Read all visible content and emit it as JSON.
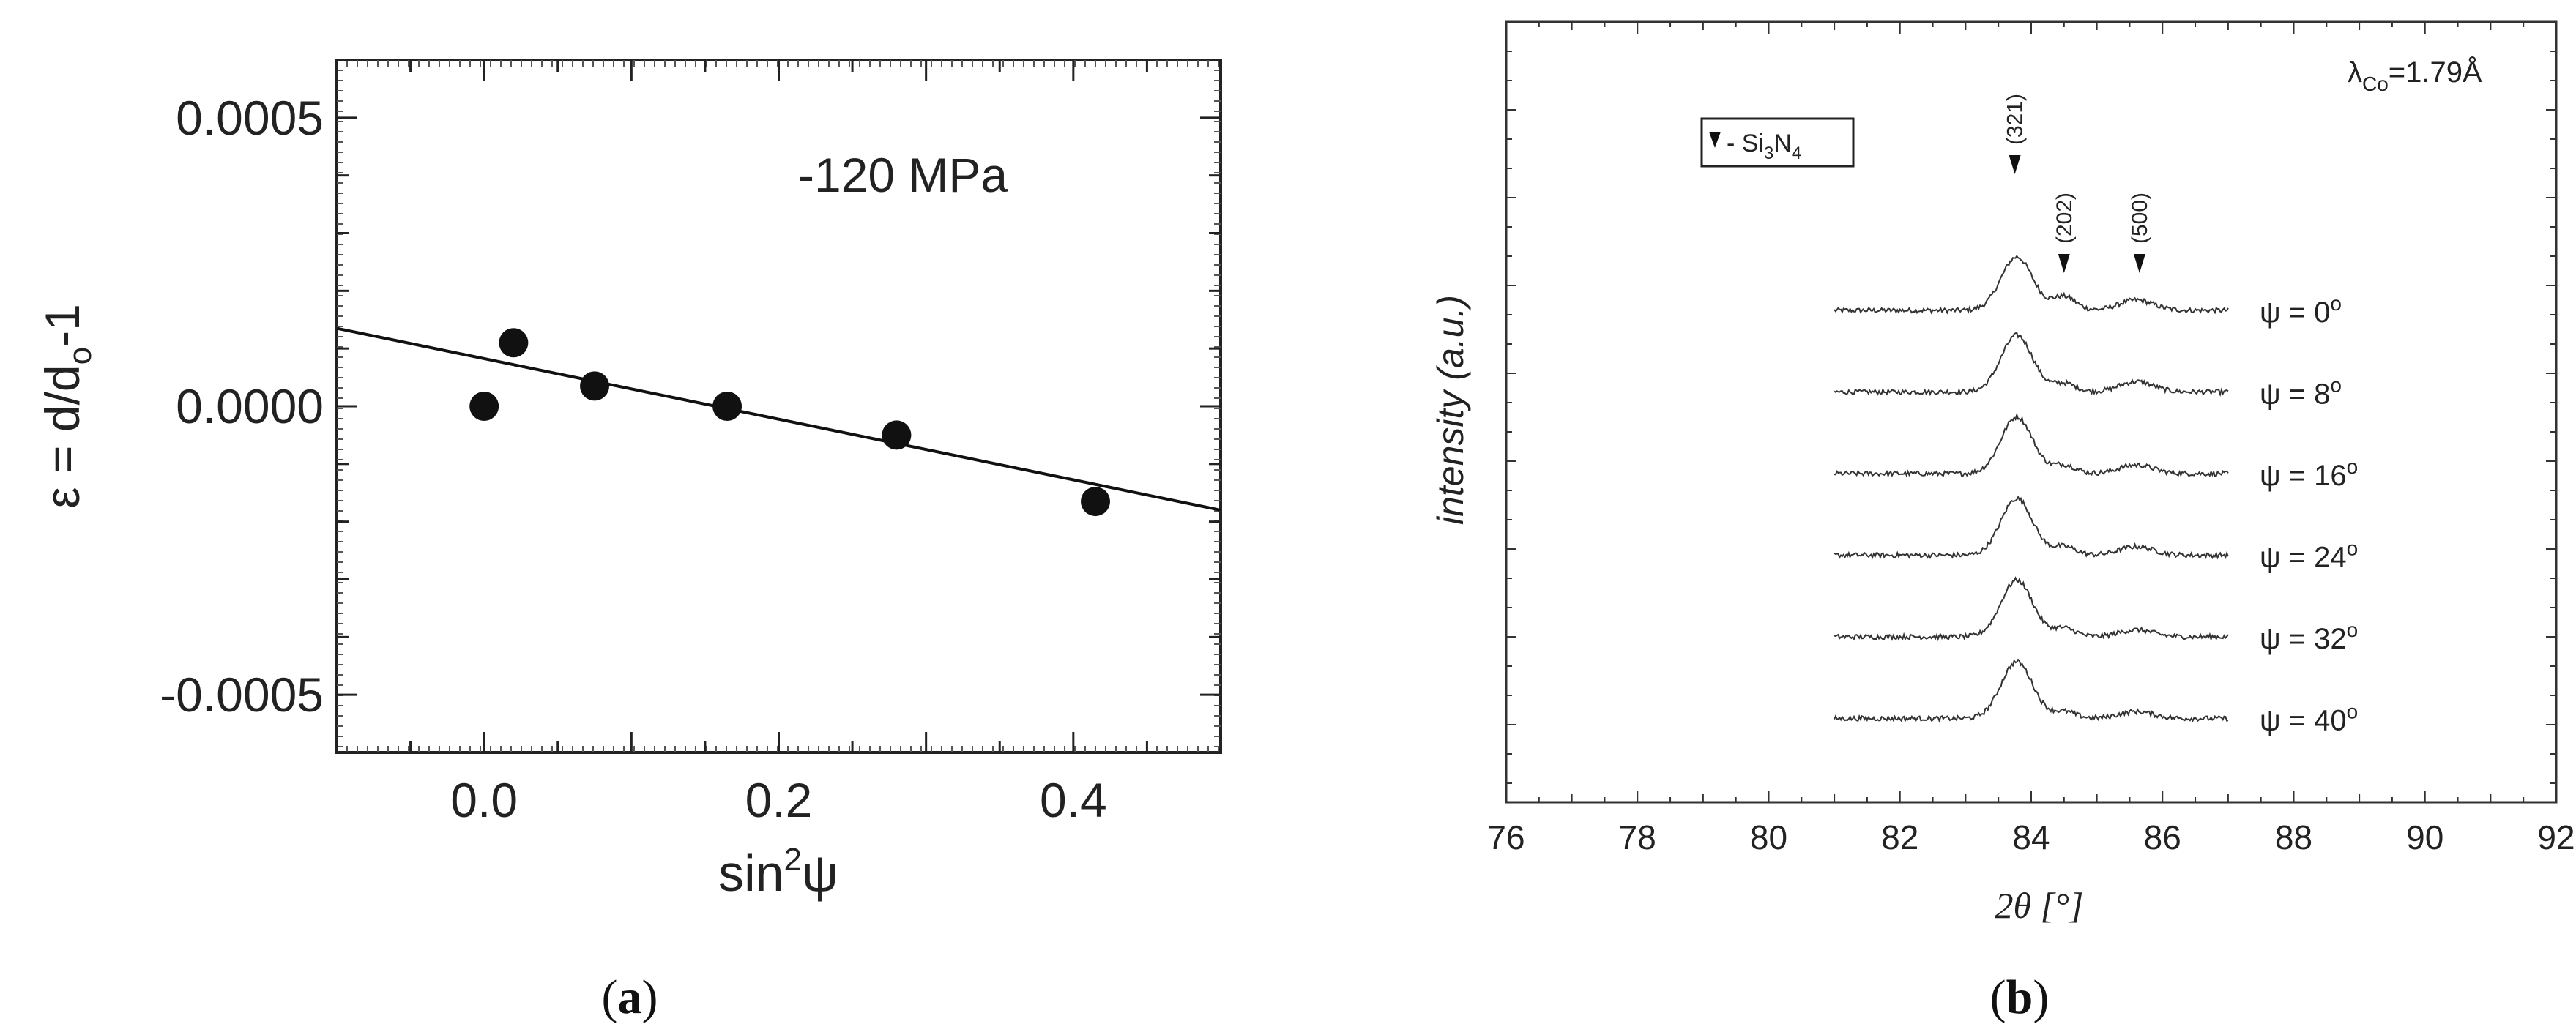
{
  "panel_a": {
    "caption_open": "(",
    "caption_letter": "a",
    "caption_close": ")",
    "chart_data": {
      "type": "scatter",
      "title": "",
      "annotation": "-120 MPa",
      "xlabel_base": "sin",
      "xlabel_sup": "2",
      "xlabel_tail": "ψ",
      "ylabel_prefix": "ε = d/d",
      "ylabel_sub": "o",
      "ylabel_suffix": "-1",
      "xlim": [
        -0.1,
        0.5
      ],
      "ylim": [
        -0.0006,
        0.0006
      ],
      "xticks": [
        0.0,
        0.2,
        0.4
      ],
      "xtick_labels": [
        "0.0",
        "0.2",
        "0.4"
      ],
      "yticks": [
        0.0005,
        0.0,
        -0.0005
      ],
      "ytick_labels": [
        "0.0005",
        "0.0000",
        "-0.0005"
      ],
      "points": [
        {
          "x": 0.0,
          "y": 0.0
        },
        {
          "x": 0.02,
          "y": 0.00011
        },
        {
          "x": 0.075,
          "y": 3.5e-05
        },
        {
          "x": 0.165,
          "y": 0.0
        },
        {
          "x": 0.28,
          "y": -5e-05
        },
        {
          "x": 0.415,
          "y": -0.000165
        }
      ],
      "fit_line": {
        "x": [
          -0.1,
          0.5
        ],
        "y": [
          0.000135,
          -0.00018
        ]
      }
    }
  },
  "panel_b": {
    "caption_open": "(",
    "caption_letter": "b",
    "caption_close": ")",
    "chart_data": {
      "type": "line",
      "title": "",
      "xlabel": "2θ [°]",
      "ylabel": "intensity (a.u.)",
      "xlim": [
        76,
        92
      ],
      "xticks": [
        76,
        78,
        80,
        82,
        84,
        86,
        88,
        90,
        92
      ],
      "xtick_labels": [
        "76",
        "78",
        "80",
        "82",
        "84",
        "86",
        "88",
        "90",
        "92"
      ],
      "wavelength_label": "λ",
      "wavelength_sub": "Co",
      "wavelength_value": "=1.79Å",
      "legend_text": "- Si",
      "legend_sub1": "3",
      "legend_mid": "N",
      "legend_sub2": "4",
      "peak_markers": [
        {
          "label": "(321)",
          "x": 83.75
        },
        {
          "label": "(202)",
          "x": 84.5
        },
        {
          "label": "(500)",
          "x": 85.65
        }
      ],
      "series": [
        {
          "name": "ψ = 0°",
          "label": "ψ = 0",
          "deg": "o",
          "peak": 0.31,
          "p202": 0.08,
          "p500": 0.06
        },
        {
          "name": "ψ = 8°",
          "label": "ψ = 8",
          "deg": "o",
          "peak": 0.33,
          "p202": 0.05,
          "p500": 0.06
        },
        {
          "name": "ψ = 16°",
          "label": "ψ = 16",
          "deg": "o",
          "peak": 0.33,
          "p202": 0.05,
          "p500": 0.05
        },
        {
          "name": "ψ = 24°",
          "label": "ψ = 24",
          "deg": "o",
          "peak": 0.33,
          "p202": 0.05,
          "p500": 0.05
        },
        {
          "name": "ψ = 32°",
          "label": "ψ = 32",
          "deg": "o",
          "peak": 0.33,
          "p202": 0.05,
          "p500": 0.04
        },
        {
          "name": "ψ = 40°",
          "label": "ψ = 40",
          "deg": "o",
          "peak": 0.33,
          "p202": 0.04,
          "p500": 0.04
        }
      ],
      "trace_x_range": [
        81.0,
        87.0
      ]
    }
  }
}
